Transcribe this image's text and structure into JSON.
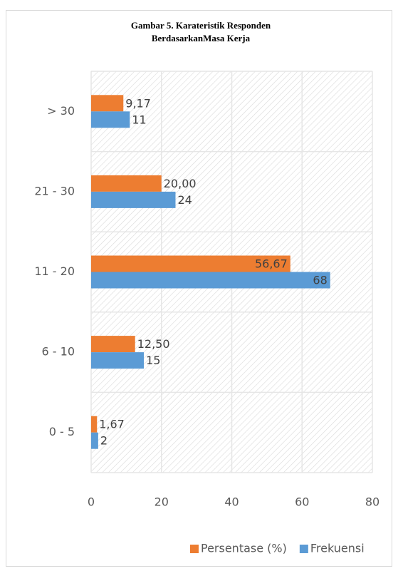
{
  "chart_data": {
    "type": "hbar",
    "title": [
      "Gambar 5. Karateristik Responden",
      "BerdasarkanMasa Kerja"
    ],
    "categories": [
      "> 30",
      "21 - 30",
      "11 - 20",
      "6 - 10",
      "0 - 5"
    ],
    "series": [
      {
        "name": "Persentase (%)",
        "color": "#ed7d31",
        "values": [
          9.17,
          20,
          56.67,
          12.5,
          1.67
        ],
        "value_labels": [
          "9,17",
          "20,00",
          "56,67",
          "12,50",
          "1,67"
        ]
      },
      {
        "name": "Frekuensi",
        "color": "#5b9bd5",
        "values": [
          11,
          24,
          68,
          15,
          2
        ]
      }
    ],
    "xlim": [
      0,
      80
    ],
    "xticks": [
      0,
      20,
      40,
      60,
      80
    ],
    "grid": true,
    "legend": "bottom"
  }
}
